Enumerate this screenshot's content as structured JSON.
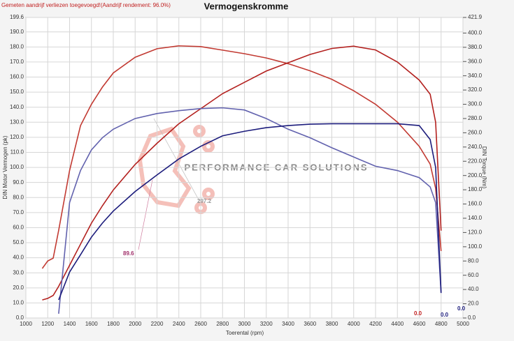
{
  "chart_data": {
    "type": "line",
    "title": "Vermogenskromme",
    "subtitle": "Gemeten aandrijf verliezen toegevoegd!(Aandrijf rendement: 96.0%)",
    "watermark": "PERFORMANCE CAR SOLUTIONS",
    "x_label": "Toerental (rpm)",
    "y_label": "DIN Motor Vermogen (pk)",
    "y2_label": "DIN Torque (Nm)",
    "annotations": [
      "89.6",
      "297.2",
      "0.0",
      "0.0",
      "0.0"
    ],
    "x": [
      1150,
      1200,
      1250,
      1300,
      1400,
      1500,
      1600,
      1700,
      1800,
      2000,
      2200,
      2400,
      2600,
      2800,
      3000,
      3200,
      3400,
      3600,
      3800,
      4000,
      4200,
      4400,
      4600,
      4700,
      4750,
      4800
    ],
    "series": [
      {
        "color": "#c23a32",
        "axis": "y2",
        "values": [
          69.5,
          80,
          84,
          123,
          207,
          270,
          300,
          324,
          344,
          366,
          378,
          382,
          381,
          376,
          371,
          365,
          357,
          347,
          335,
          319,
          300,
          275,
          241,
          216,
          182,
          94
        ]
      },
      {
        "color": "#b3201e",
        "values": [
          12,
          13,
          15,
          21,
          35,
          49,
          63,
          74.5,
          85,
          102,
          116,
          129,
          139,
          149,
          156.5,
          164,
          169.5,
          175,
          179,
          180.5,
          178,
          170,
          158,
          148.6,
          130,
          58
        ]
      },
      {
        "color": "#6262ae",
        "axis": "y2",
        "values": [
          null,
          null,
          null,
          6,
          162,
          207,
          236,
          253,
          265,
          280,
          287,
          291,
          294,
          295,
          292,
          280,
          265,
          253,
          239,
          226,
          213,
          207,
          197,
          184,
          162,
          35
        ]
      },
      {
        "color": "#1c1c7c",
        "values": [
          null,
          null,
          null,
          12,
          30.5,
          42,
          53.7,
          63,
          71,
          84,
          95,
          105.6,
          114,
          121,
          124,
          126.4,
          127.8,
          128.7,
          129,
          129,
          129,
          129,
          127.8,
          118.5,
          100,
          16.7
        ]
      }
    ],
    "xlim": [
      1000,
      5000
    ],
    "xticks": [
      1000,
      1200,
      1400,
      1600,
      1800,
      2000,
      2200,
      2400,
      2600,
      2800,
      3000,
      3200,
      3400,
      3600,
      3800,
      4000,
      4200,
      4400,
      4600,
      4800,
      5000
    ],
    "ylim": [
      0,
      199.6
    ],
    "yticks": [
      {
        "value": 0,
        "label": "0.0"
      },
      {
        "value": 10,
        "label": "10.0"
      },
      {
        "value": 20,
        "label": "20.0"
      },
      {
        "value": 30,
        "label": "30.0"
      },
      {
        "value": 40,
        "label": "40.0"
      },
      {
        "value": 50,
        "label": "50.0"
      },
      {
        "value": 60,
        "label": "60.0"
      },
      {
        "value": 70,
        "label": "70.0"
      },
      {
        "value": 80,
        "label": "80.0"
      },
      {
        "value": 90,
        "label": "90.0"
      },
      {
        "value": 100,
        "label": "100.0"
      },
      {
        "value": 110,
        "label": "110.0"
      },
      {
        "value": 120,
        "label": "120.0"
      },
      {
        "value": 130,
        "label": "130.0"
      },
      {
        "value": 140,
        "label": "140.0"
      },
      {
        "value": 150,
        "label": "150.0"
      },
      {
        "value": 160,
        "label": "160.0"
      },
      {
        "value": 170,
        "label": "170.0"
      },
      {
        "value": 180,
        "label": "180.0"
      },
      {
        "value": 190,
        "label": "190.0"
      },
      {
        "value": 199.6,
        "label": "199.6"
      }
    ],
    "y2lim": [
      0,
      421.9
    ],
    "y2ticks": [
      {
        "value": 0,
        "label": "0.0"
      },
      {
        "value": 20,
        "label": "20.0"
      },
      {
        "value": 40,
        "label": "40.0"
      },
      {
        "value": 60,
        "label": "60.0"
      },
      {
        "value": 80,
        "label": "80.0"
      },
      {
        "value": 100,
        "label": "100.0"
      },
      {
        "value": 120,
        "label": "120.0"
      },
      {
        "value": 140,
        "label": "140.0"
      },
      {
        "value": 160,
        "label": "160.0"
      },
      {
        "value": 180,
        "label": "180.0"
      },
      {
        "value": 200,
        "label": "200.0"
      },
      {
        "value": 220,
        "label": "220.0"
      },
      {
        "value": 240,
        "label": "240.0"
      },
      {
        "value": 260,
        "label": "260.0"
      },
      {
        "value": 280,
        "label": "280.0"
      },
      {
        "value": 300,
        "label": "300.0"
      },
      {
        "value": 320,
        "label": "320.0"
      },
      {
        "value": 340,
        "label": "340.0"
      },
      {
        "value": 360,
        "label": "360.0"
      },
      {
        "value": 380,
        "label": "380.0"
      },
      {
        "value": 400,
        "label": "400.0"
      },
      {
        "value": 421.9,
        "label": "421.9"
      }
    ],
    "grid": true
  }
}
